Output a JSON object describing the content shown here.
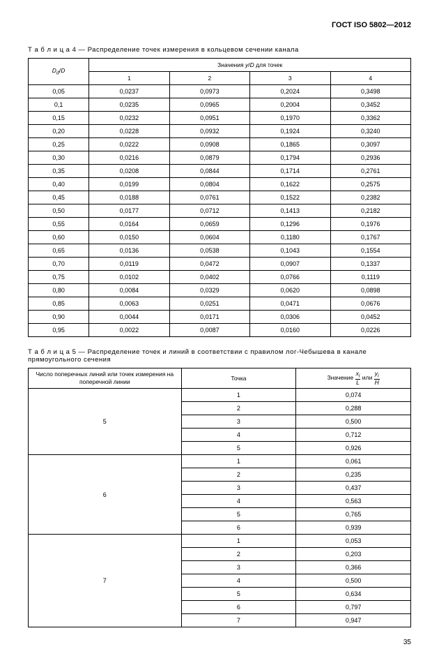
{
  "header": "ГОСТ ISO 5802—2012",
  "table4": {
    "caption_prefix": "Т а б л и ц а  4 — ",
    "caption": "Распределение точек измерения в кольцевом сечении канала",
    "row1_col1_html": "<span class='ital'>D<sub>d</sub></span>/<span class='ital'>D</span>",
    "row1_col2_html": "Значения <span class='ital'>y</span>/<span class='ital'>D</span> для точек",
    "col_nums": [
      "1",
      "2",
      "3",
      "4"
    ],
    "rows": [
      [
        "0,05",
        "0,0237",
        "0,0973",
        "0,2024",
        "0,3498"
      ],
      [
        "0,1",
        "0,0235",
        "0,0965",
        "0,2004",
        "0,3452"
      ],
      [
        "0,15",
        "0,0232",
        "0,0951",
        "0,1970",
        "0,3362"
      ],
      [
        "0,20",
        "0,0228",
        "0,0932",
        "0,1924",
        "0,3240"
      ],
      [
        "0,25",
        "0,0222",
        "0,0908",
        "0,1865",
        "0,3097"
      ],
      [
        "0,30",
        "0,0216",
        "0,0879",
        "0,1794",
        "0,2936"
      ],
      [
        "0,35",
        "0,0208",
        "0,0844",
        "0,1714",
        "0,2761"
      ],
      [
        "0,40",
        "0,0199",
        "0,0804",
        "0,1622",
        "0,2575"
      ],
      [
        "0,45",
        "0,0188",
        "0,0761",
        "0,1522",
        "0,2382"
      ],
      [
        "0,50",
        "0,0177",
        "0,0712",
        "0,1413",
        "0,2182"
      ],
      [
        "0,55",
        "0,0164",
        "0,0659",
        "0,1296",
        "0,1976"
      ],
      [
        "0,60",
        "0,0150",
        "0,0604",
        "0,1180",
        "0,1767"
      ],
      [
        "0,65",
        "0,0136",
        "0,0538",
        "0,1043",
        "0,1554"
      ],
      [
        "0,70",
        "0,0119",
        "0,0472",
        "0,0907",
        "0,1337"
      ],
      [
        "0,75",
        "0,0102",
        "0,0402",
        "0,0766",
        "0,1119"
      ],
      [
        "0,80",
        "0,0084",
        "0,0329",
        "0,0620",
        "0,0898"
      ],
      [
        "0,85",
        "0,0063",
        "0,0251",
        "0,0471",
        "0,0676"
      ],
      [
        "0,90",
        "0,0044",
        "0,0171",
        "0,0306",
        "0,0452"
      ],
      [
        "0,95",
        "0,0022",
        "0,0087",
        "0,0160",
        "0,0226"
      ]
    ]
  },
  "table5": {
    "caption_prefix": "Т а б л и ц а  5 — ",
    "caption": "Распределение точек и линий в соответствии с правилом лог-Чебышева в канале прямоугольного сечения",
    "head_col1": "Число поперечных линий или точек измерения на поперечной линии",
    "head_col2": "Точка",
    "head_col3_pre": "Значение ",
    "head_col3_mid": " или ",
    "groups": [
      {
        "n": "5",
        "rows": [
          [
            "1",
            "0,074"
          ],
          [
            "2",
            "0,288"
          ],
          [
            "3",
            "0,500"
          ],
          [
            "4",
            "0,712"
          ],
          [
            "5",
            "0,926"
          ]
        ]
      },
      {
        "n": "6",
        "rows": [
          [
            "1",
            "0,061"
          ],
          [
            "2",
            "0,235"
          ],
          [
            "3",
            "0,437"
          ],
          [
            "4",
            "0,563"
          ],
          [
            "5",
            "0,765"
          ],
          [
            "6",
            "0,939"
          ]
        ]
      },
      {
        "n": "7",
        "rows": [
          [
            "1",
            "0,053"
          ],
          [
            "2",
            "0,203"
          ],
          [
            "3",
            "0,366"
          ],
          [
            "4",
            "0,500"
          ],
          [
            "5",
            "0,634"
          ],
          [
            "6",
            "0,797"
          ],
          [
            "7",
            "0,947"
          ]
        ]
      }
    ]
  },
  "page_num": "35"
}
